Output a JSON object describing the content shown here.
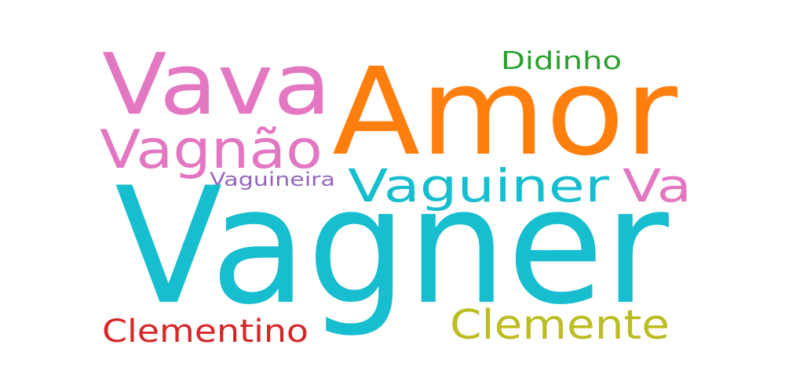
{
  "words": [
    {
      "id": "vagner",
      "text": "Vagner",
      "color": "#17becf"
    },
    {
      "id": "amor",
      "text": "Amor",
      "color": "#ff7f0e"
    },
    {
      "id": "vava",
      "text": "Vava",
      "color": "#e377c2"
    },
    {
      "id": "vagnao",
      "text": "Vagnão",
      "color": "#e377c2"
    },
    {
      "id": "vaguiner",
      "text": "Vaguiner",
      "color": "#17becf"
    },
    {
      "id": "va",
      "text": "Va",
      "color": "#e377c2"
    },
    {
      "id": "vaguineira",
      "text": "Vaguineira",
      "color": "#9467bd"
    },
    {
      "id": "didinho",
      "text": "Didinho",
      "color": "#2ca02c"
    },
    {
      "id": "clementino",
      "text": "Clementino",
      "color": "#d62728"
    },
    {
      "id": "clemente",
      "text": "Clemente",
      "color": "#bcbd22"
    }
  ]
}
